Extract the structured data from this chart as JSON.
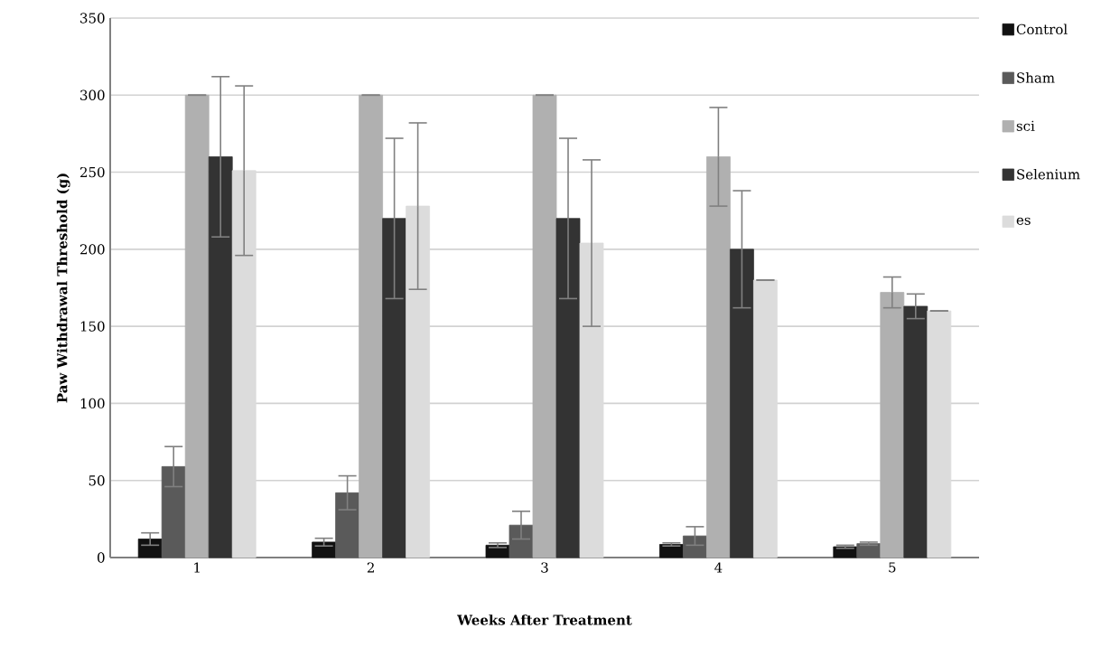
{
  "chart_data": {
    "type": "bar",
    "xlabel": "Weeks After Treatment",
    "ylabel": "Paw Withdrawal Threshold (g)",
    "categories": [
      "1",
      "2",
      "3",
      "4",
      "5"
    ],
    "series": [
      {
        "name": "Control",
        "color": "#111111",
        "values": [
          12,
          10,
          8,
          8.5,
          7
        ],
        "errors": [
          4,
          2.5,
          1.5,
          1,
          1
        ]
      },
      {
        "name": "Sham",
        "color": "#5a5a5a",
        "values": [
          59,
          42,
          21,
          14,
          9
        ],
        "errors": [
          13,
          11,
          9,
          6,
          1
        ]
      },
      {
        "name": "sci",
        "color": "#b0b0b0",
        "values": [
          300,
          300,
          300,
          260,
          172
        ],
        "errors": [
          null,
          null,
          null,
          32,
          10
        ]
      },
      {
        "name": "Selenium",
        "color": "#333333",
        "values": [
          260,
          220,
          220,
          200,
          163
        ],
        "errors": [
          52,
          52,
          52,
          38,
          8
        ]
      },
      {
        "name": "es",
        "color": "#dcdcdc",
        "values": [
          251,
          228,
          204,
          180,
          160
        ],
        "errors": [
          55,
          54,
          54,
          null,
          null
        ]
      }
    ],
    "ylim": [
      0,
      350
    ],
    "yticks": [
      0,
      50,
      100,
      150,
      200,
      250,
      300,
      350
    ],
    "grid": "y",
    "legend": "right"
  }
}
